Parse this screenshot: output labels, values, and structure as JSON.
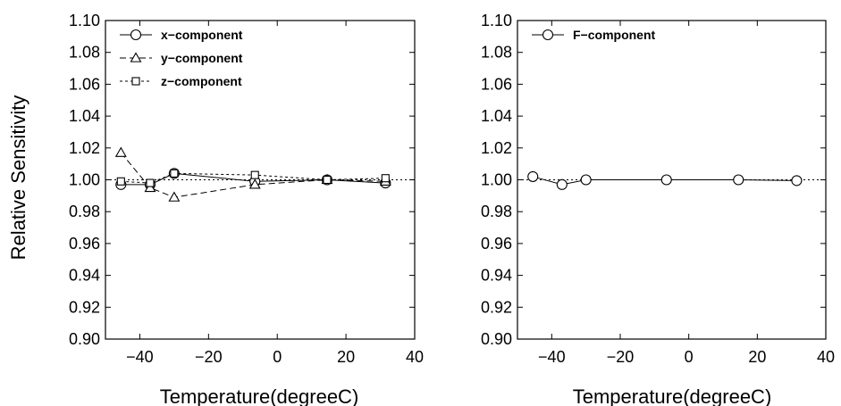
{
  "chart_data": [
    {
      "type": "line",
      "xlabel": "Temperature(degreeC)",
      "ylabel": "Relative Sensitivity",
      "xlim": [
        -50,
        40
      ],
      "ylim": [
        0.9,
        1.1
      ],
      "xticks": [
        -40,
        -20,
        0,
        20,
        40
      ],
      "xtick_labels": [
        "−40",
        "−20",
        "0",
        "20",
        "40"
      ],
      "yticks": [
        0.9,
        0.92,
        0.94,
        0.96,
        0.98,
        1.0,
        1.02,
        1.04,
        1.06,
        1.08,
        1.1
      ],
      "ytick_labels": [
        "0.90",
        "0.92",
        "0.94",
        "0.96",
        "0.98",
        "1.00",
        "1.02",
        "1.04",
        "1.06",
        "1.08",
        "1.10"
      ],
      "reference_line": 1.0,
      "legend_position": "top-left",
      "series": [
        {
          "name": "x−component",
          "marker": "circle",
          "dash": "solid",
          "x": [
            -45.5,
            -37,
            -30,
            -6.5,
            14.5,
            31.5
          ],
          "y": [
            0.997,
            0.997,
            1.004,
            0.999,
            1.0,
            0.998
          ]
        },
        {
          "name": "y−component",
          "marker": "triangle",
          "dash": "dashed",
          "x": [
            -45.5,
            -37,
            -30,
            -6.5,
            14.5,
            31.5
          ],
          "y": [
            1.017,
            0.995,
            0.989,
            0.997,
            1.0,
            0.999
          ]
        },
        {
          "name": "z−component",
          "marker": "square",
          "dash": "dotted",
          "x": [
            -45.5,
            -37,
            -30,
            -6.5,
            14.5,
            31.5
          ],
          "y": [
            0.999,
            0.998,
            1.004,
            1.003,
            1.0,
            1.001
          ]
        }
      ]
    },
    {
      "type": "line",
      "xlabel": "Temperature(degreeC)",
      "ylabel": "",
      "xlim": [
        -50,
        40
      ],
      "ylim": [
        0.9,
        1.1
      ],
      "xticks": [
        -40,
        -20,
        0,
        20,
        40
      ],
      "xtick_labels": [
        "−40",
        "−20",
        "0",
        "20",
        "40"
      ],
      "yticks": [
        0.9,
        0.92,
        0.94,
        0.96,
        0.98,
        1.0,
        1.02,
        1.04,
        1.06,
        1.08,
        1.1
      ],
      "ytick_labels": [
        "0.90",
        "0.92",
        "0.94",
        "0.96",
        "0.98",
        "1.00",
        "1.02",
        "1.04",
        "1.06",
        "1.08",
        "1.10"
      ],
      "reference_line": 1.0,
      "legend_position": "top-left",
      "series": [
        {
          "name": "F−component",
          "marker": "circle",
          "dash": "solid",
          "x": [
            -45.5,
            -37,
            -30,
            -6.5,
            14.5,
            31.5
          ],
          "y": [
            1.002,
            0.997,
            1.0,
            1.0,
            1.0,
            0.9995
          ]
        }
      ]
    }
  ]
}
